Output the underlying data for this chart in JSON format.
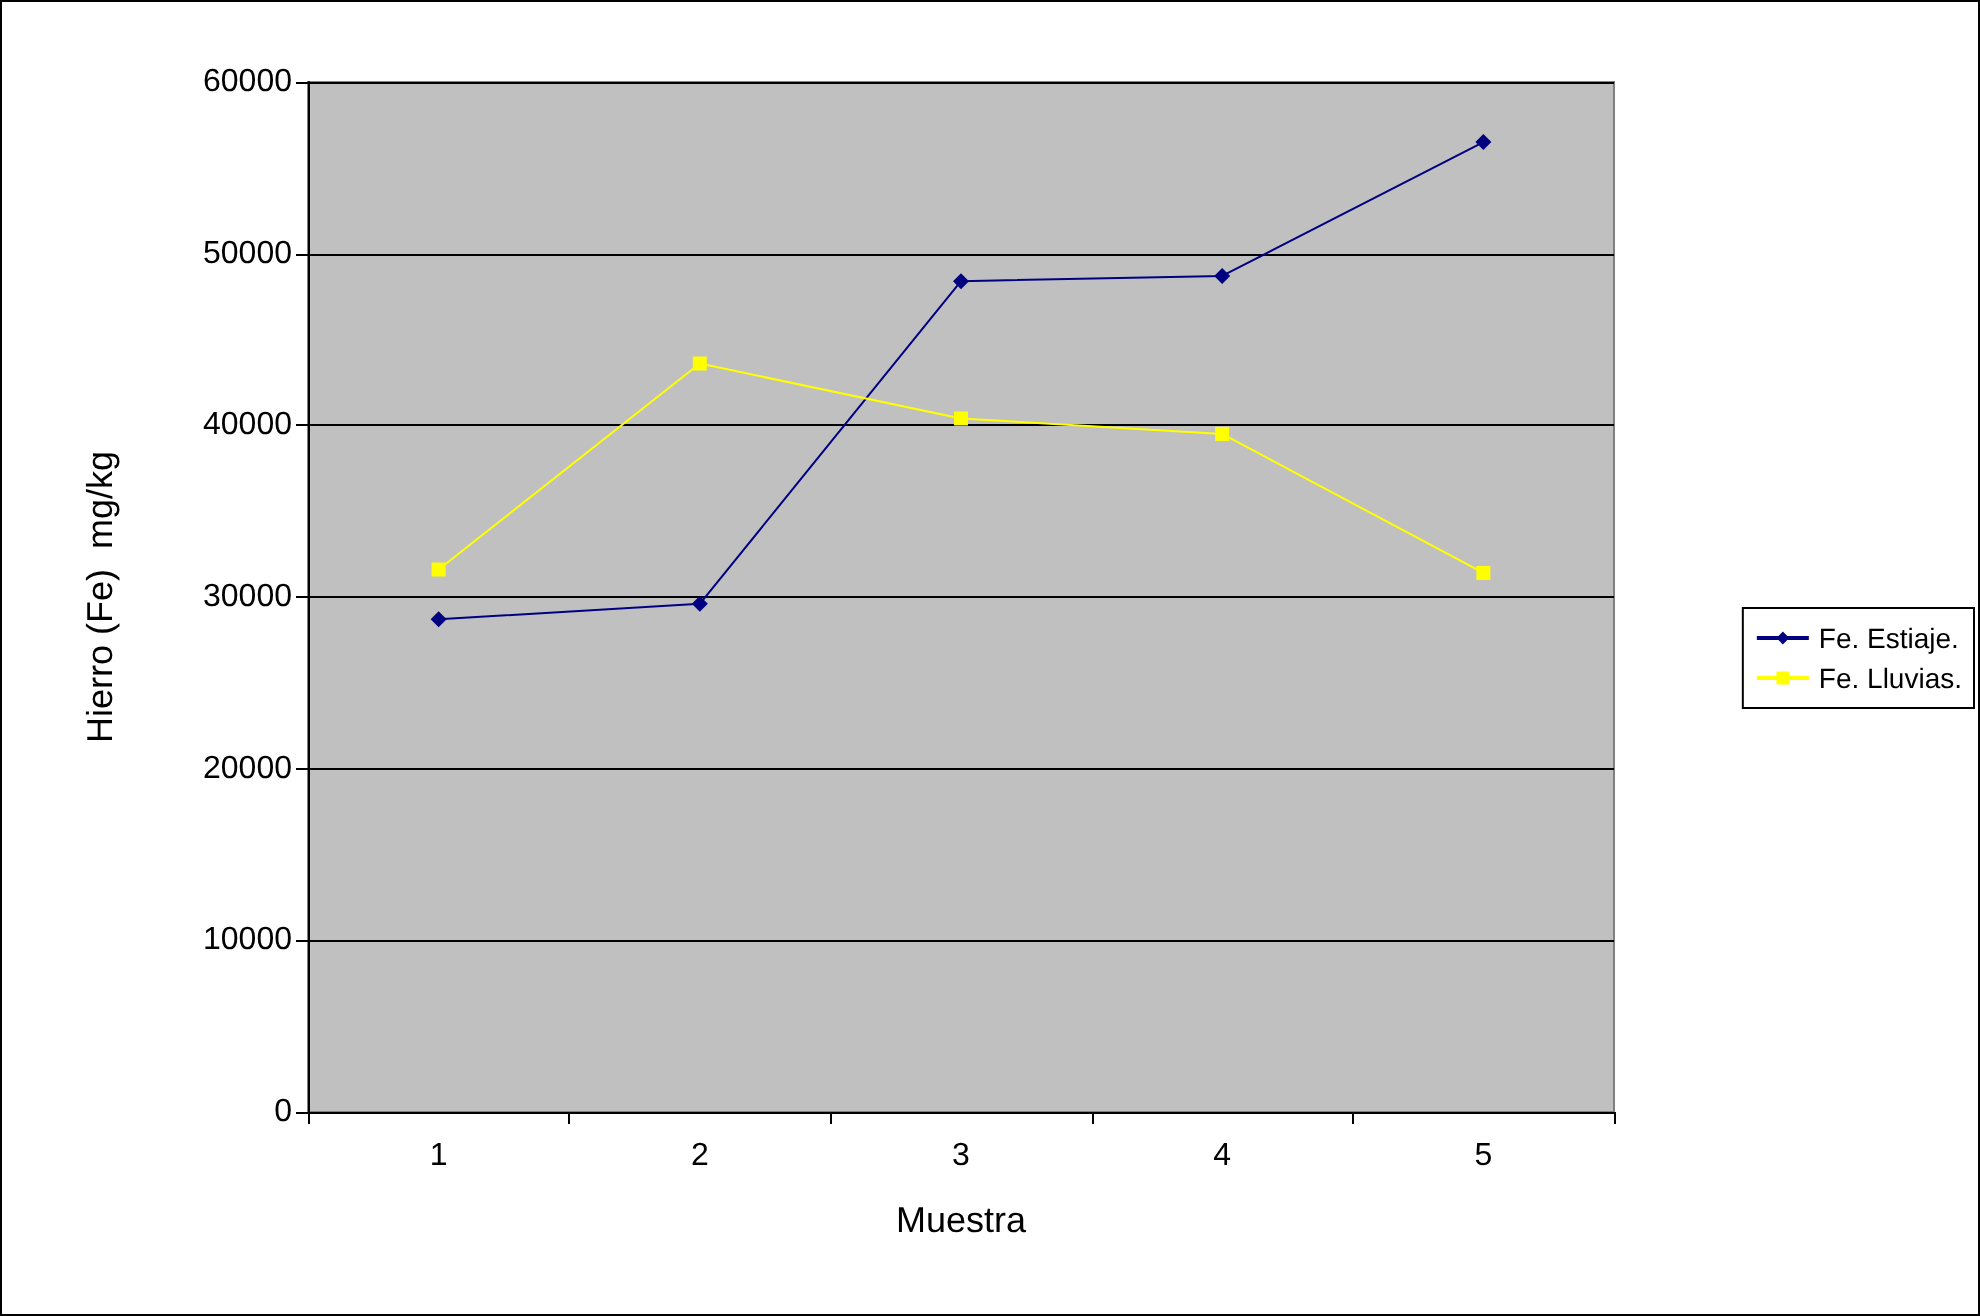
{
  "chart_data": {
    "type": "line",
    "xlabel": "Muestra",
    "ylabel": "Hierro (Fe)  mg/kg",
    "categories": [
      "1",
      "2",
      "3",
      "4",
      "5"
    ],
    "series": [
      {
        "name": "Fe. Estiaje.",
        "color": "#000080",
        "marker": "diamond",
        "values": [
          28700,
          29600,
          48400,
          48700,
          56500
        ]
      },
      {
        "name": "Fe. Lluvias.",
        "color": "#ffff00",
        "marker": "square",
        "values": [
          31600,
          43600,
          40400,
          39500,
          31400
        ]
      }
    ],
    "ylim": [
      0,
      60000
    ],
    "yticks": [
      0,
      10000,
      20000,
      30000,
      40000,
      50000,
      60000
    ],
    "grid": "y",
    "legend": "right",
    "line_style": "solid"
  }
}
